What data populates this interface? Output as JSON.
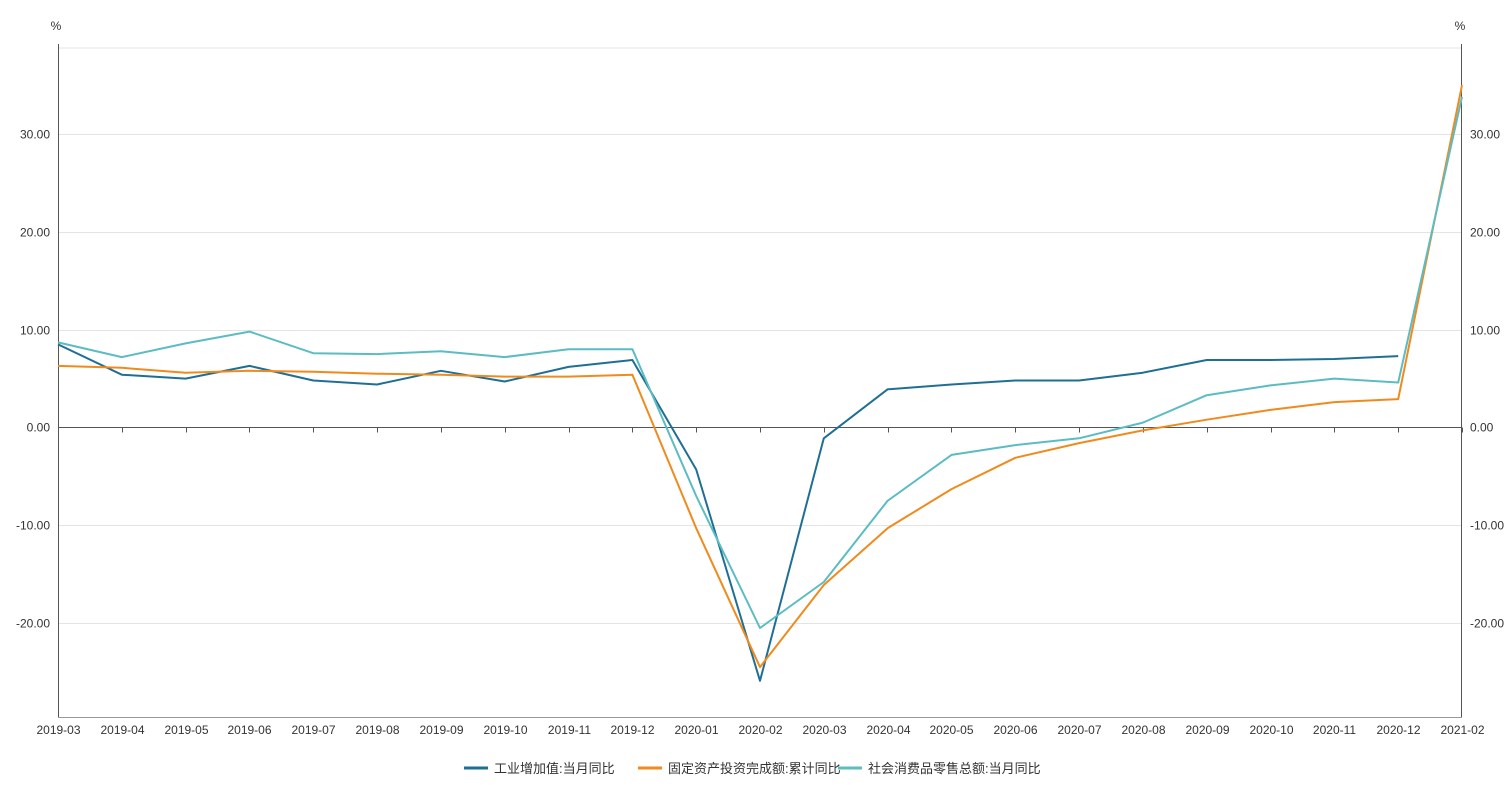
{
  "chart_data": {
    "type": "line",
    "title": "",
    "xlabel": "",
    "y_unit_left": "%",
    "y_unit_right": "%",
    "x": [
      "2019-03",
      "2019-04",
      "2019-05",
      "2019-06",
      "2019-07",
      "2019-08",
      "2019-09",
      "2019-10",
      "2019-11",
      "2019-12",
      "2020-01",
      "2020-02",
      "2020-03",
      "2020-04",
      "2020-05",
      "2020-06",
      "2020-07",
      "2020-08",
      "2020-09",
      "2020-10",
      "2020-11",
      "2020-12",
      "2021-02"
    ],
    "yticks": [
      -20,
      -10,
      0,
      10,
      20,
      30
    ],
    "ytick_labels": [
      "-20.00",
      "-10.00",
      "0.00",
      "10.00",
      "20.00",
      "30.00"
    ],
    "ylim": [
      -29.6,
      38.8
    ],
    "grid": true,
    "legend_position": "bottom-center",
    "series": [
      {
        "name": "工业增加值:当月同比",
        "color": "#1f6f94",
        "values": [
          8.5,
          5.4,
          5.0,
          6.3,
          4.8,
          4.4,
          5.8,
          4.7,
          6.2,
          6.9,
          -4.3,
          -25.9,
          -1.1,
          3.9,
          4.4,
          4.8,
          4.8,
          5.6,
          6.9,
          6.9,
          7.0,
          7.3,
          null
        ]
      },
      {
        "name": "固定资产投资完成额:累计同比",
        "color": "#f08a1d",
        "values": [
          6.3,
          6.1,
          5.6,
          5.8,
          5.7,
          5.5,
          5.4,
          5.2,
          5.2,
          5.4,
          -10.3,
          -24.5,
          -16.1,
          -10.3,
          -6.3,
          -3.1,
          -1.6,
          -0.3,
          0.8,
          1.8,
          2.6,
          2.9,
          35.0
        ]
      },
      {
        "name": "社会消费品零售总额:当月同比",
        "color": "#5bbcc2",
        "values": [
          8.7,
          7.2,
          8.6,
          9.8,
          7.6,
          7.5,
          7.8,
          7.2,
          8.0,
          8.0,
          -7.0,
          -20.5,
          -15.8,
          -7.5,
          -2.8,
          -1.8,
          -1.1,
          0.5,
          3.3,
          4.3,
          5.0,
          4.6,
          33.8
        ]
      }
    ]
  }
}
